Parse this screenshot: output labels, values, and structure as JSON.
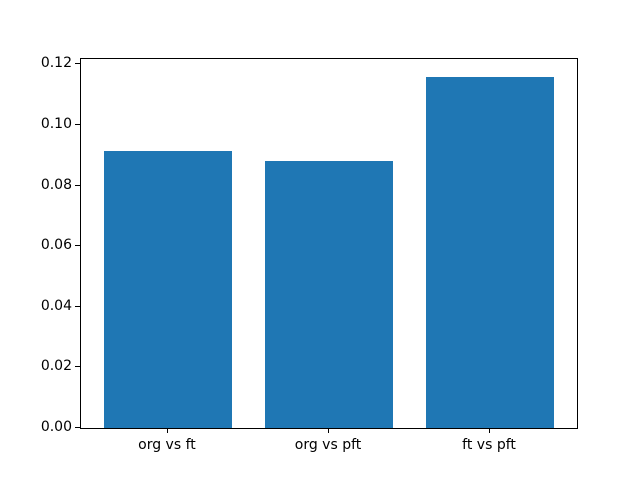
{
  "figure": {
    "background": "#ffffff",
    "spine_color": "#000000",
    "text_color": "#000000"
  },
  "chart_data": {
    "type": "bar",
    "title": "",
    "xlabel": "",
    "ylabel": "",
    "categories": [
      "org vs ft",
      "org vs pft",
      "ft vs pft"
    ],
    "values": [
      0.0914,
      0.088,
      0.116
    ],
    "bar_color": "#1f77b4",
    "bar_width": 0.8,
    "ylim": [
      0,
      0.1218
    ],
    "xlim": [
      -0.54,
      2.54
    ],
    "ytick_values": [
      0,
      0.02,
      0.04,
      0.06,
      0.08,
      0.1,
      0.12
    ],
    "yticks": [
      "0.00",
      "0.02",
      "0.04",
      "0.06",
      "0.08",
      "0.10",
      "0.12"
    ],
    "grid": false,
    "legend": null
  }
}
